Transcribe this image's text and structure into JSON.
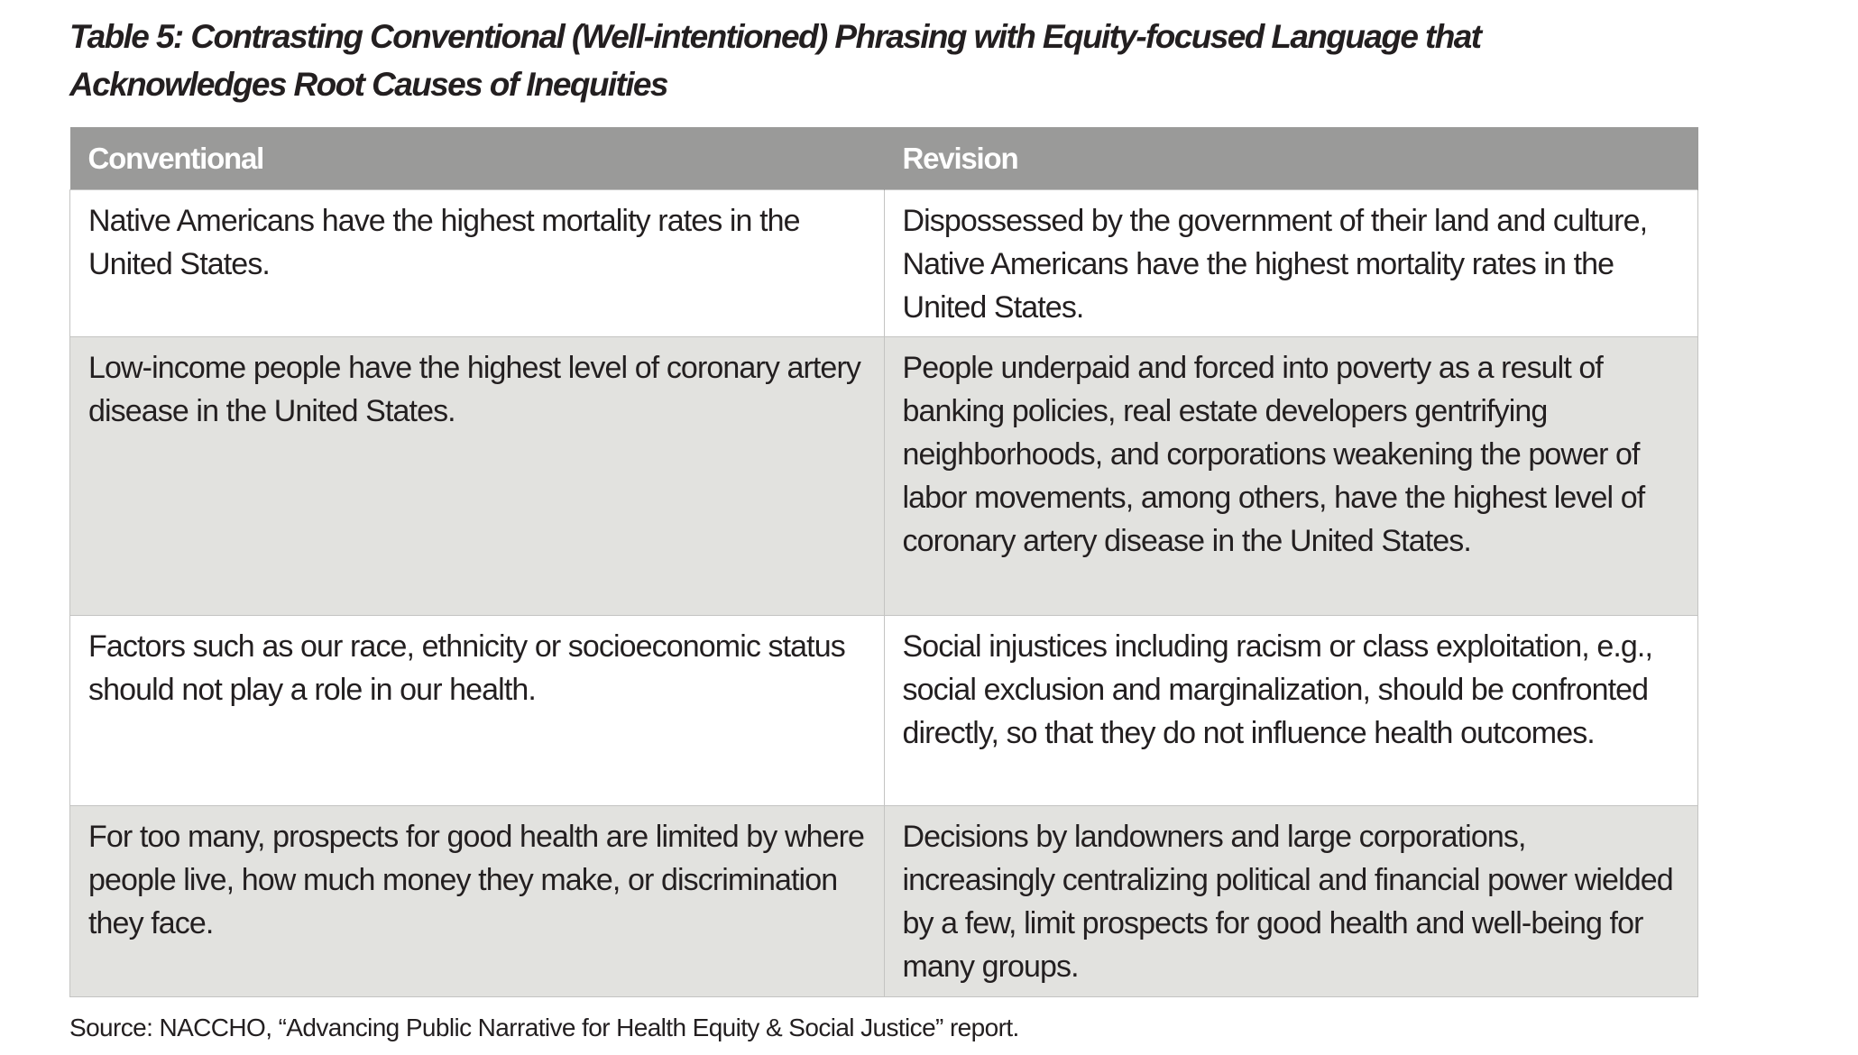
{
  "title": "Table 5: Contrasting Conventional (Well-intentioned) Phrasing with Equity-focused Language that Acknowledges Root Causes of Inequities",
  "table": {
    "headers": [
      "Conventional",
      "Revision"
    ],
    "rows": [
      [
        "Native Americans have the highest mortality rates in the United States.",
        "Dispossessed by the government of their land and culture, Native Americans have the highest mortality rates in the United States."
      ],
      [
        "Low-income people have the highest level of coronary artery disease in the United States.",
        "People underpaid and forced into poverty as a result of banking policies, real estate developers gentrifying neighborhoods, and corporations weakening the power of labor movements, among others, have the highest level of coronary artery disease in the United States."
      ],
      [
        "Factors such as our race, ethnicity or socioeconomic status should not play a role in our health.",
        "Social injustices including racism or class exploitation, e.g., social exclusion and marginalization, should be confronted directly, so that they do not influence health outcomes."
      ],
      [
        "For too many, prospects for good health are limited by where people live, how much money they make, or discrimination they face.",
        "Decisions by landowners and large corporations, increasingly centralizing political and financial power wielded by a few, limit prospects for good health and well-being for many groups."
      ]
    ]
  },
  "source": "Source: NACCHO, “Advancing Public Narrative for Health Equity & Social Justice” report.",
  "colors": {
    "header_bg": "#9a9a99",
    "alt_row_bg": "#e2e2df",
    "border": "#c4c4c2"
  }
}
